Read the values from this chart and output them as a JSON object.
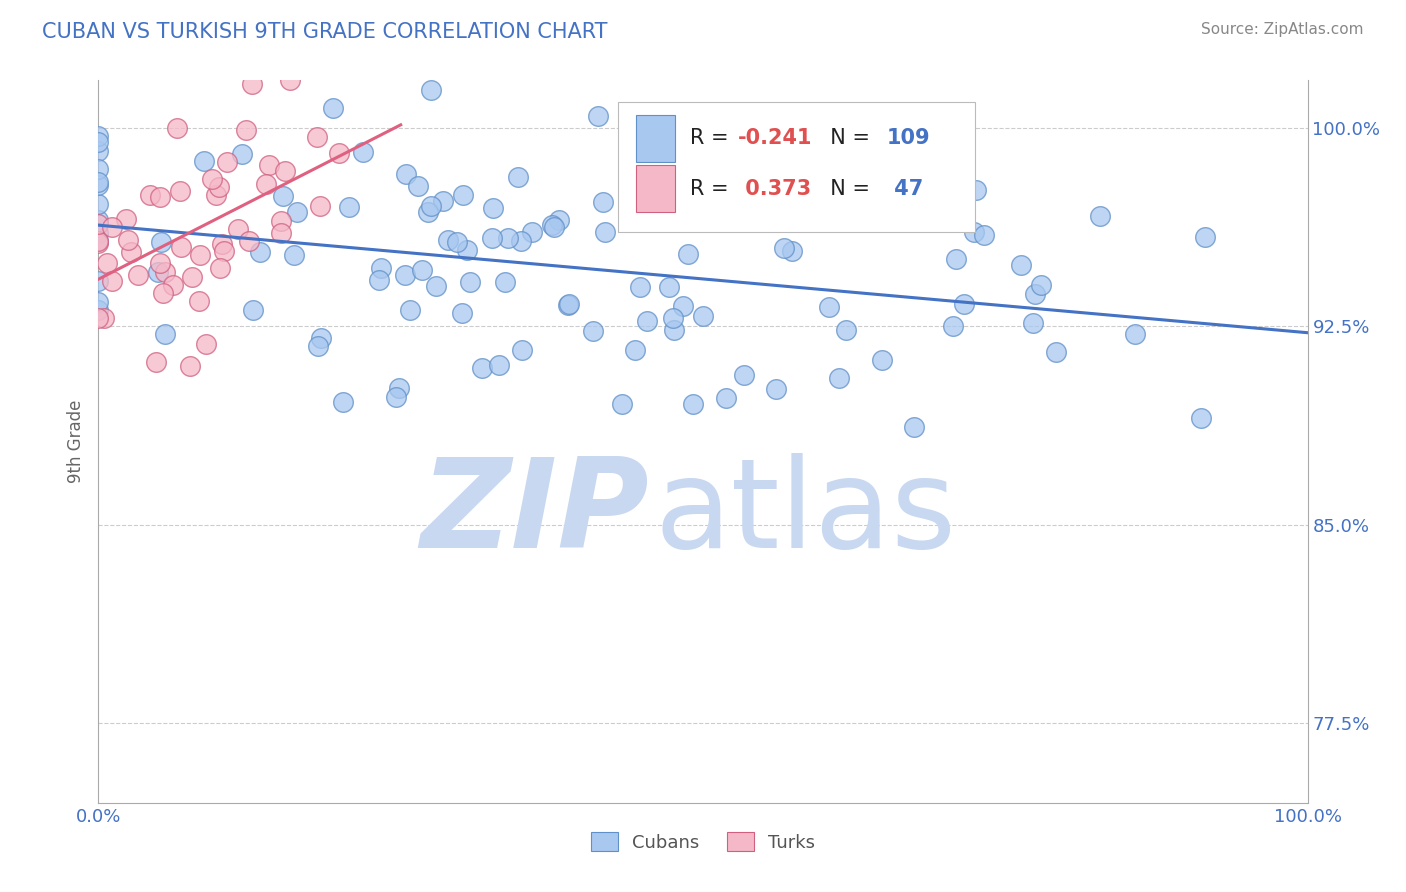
{
  "title": "CUBAN VS TURKISH 9TH GRADE CORRELATION CHART",
  "source_text": "Source: ZipAtlas.com",
  "ylabel": "9th Grade",
  "x_min": 0.0,
  "x_max": 1.0,
  "y_min": 0.745,
  "y_max": 1.018,
  "yticks": [
    0.775,
    0.85,
    0.925,
    1.0
  ],
  "ytick_labels": [
    "77.5%",
    "85.0%",
    "92.5%",
    "100.0%"
  ],
  "xtick_labels": [
    "0.0%",
    "100.0%"
  ],
  "blue_color": "#a8c8f0",
  "pink_color": "#f5b8c8",
  "blue_edge_color": "#6090c8",
  "pink_edge_color": "#d06080",
  "blue_line_color": "#4472c4",
  "pink_line_color": "#e06080",
  "watermark_zip": "ZIP",
  "watermark_atlas": "atlas",
  "watermark_color": "#c8d8f0",
  "legend_label_blue": "Cubans",
  "legend_label_pink": "Turks",
  "blue_R": -0.241,
  "pink_R": 0.373,
  "blue_N": 109,
  "pink_N": 47,
  "title_color": "#4472c4",
  "axis_label_color": "#666666",
  "tick_color": "#4472c4",
  "grid_color": "#cccccc",
  "r_value_color": "#e05050",
  "n_value_color": "#4472c4"
}
